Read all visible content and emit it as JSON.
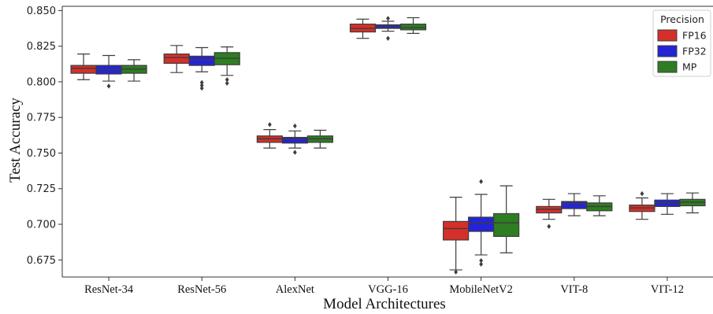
{
  "chart_data": {
    "type": "box",
    "xlabel": "Model Architectures",
    "ylabel": "Test Accuracy",
    "ylim": [
      0.663,
      0.853
    ],
    "yticks": [
      "0.675",
      "0.700",
      "0.725",
      "0.750",
      "0.775",
      "0.800",
      "0.825",
      "0.850"
    ],
    "grid": false,
    "legend": {
      "title": "Precision",
      "position": "top-right"
    },
    "categories": [
      "ResNet-34",
      "ResNet-56",
      "AlexNet",
      "VGG-16",
      "MobileNetV2",
      "VIT-8",
      "VIT-12"
    ],
    "series": [
      {
        "name": "FP16",
        "color": "#d62f2a",
        "boxes": [
          {
            "whislo": 0.8015,
            "q1": 0.806,
            "med": 0.8095,
            "q3": 0.8115,
            "whishi": 0.8195,
            "fliers": []
          },
          {
            "whislo": 0.8065,
            "q1": 0.813,
            "med": 0.817,
            "q3": 0.8195,
            "whishi": 0.8255,
            "fliers": []
          },
          {
            "whislo": 0.7535,
            "q1": 0.7575,
            "med": 0.76,
            "q3": 0.762,
            "whishi": 0.7665,
            "fliers": [
              0.77
            ]
          },
          {
            "whislo": 0.8305,
            "q1": 0.835,
            "med": 0.8375,
            "q3": 0.8405,
            "whishi": 0.844,
            "fliers": []
          },
          {
            "whislo": 0.668,
            "q1": 0.689,
            "med": 0.697,
            "q3": 0.702,
            "whishi": 0.719,
            "fliers": [
              0.6665
            ]
          },
          {
            "whislo": 0.7035,
            "q1": 0.708,
            "med": 0.7105,
            "q3": 0.7125,
            "whishi": 0.7175,
            "fliers": [
              0.6985
            ]
          },
          {
            "whislo": 0.7035,
            "q1": 0.709,
            "med": 0.7115,
            "q3": 0.7135,
            "whishi": 0.7185,
            "fliers": [
              0.7215
            ]
          }
        ]
      },
      {
        "name": "FP32",
        "color": "#2424d6",
        "boxes": [
          {
            "whislo": 0.8005,
            "q1": 0.8055,
            "med": 0.8085,
            "q3": 0.8115,
            "whishi": 0.8185,
            "fliers": [
              0.797
            ]
          },
          {
            "whislo": 0.807,
            "q1": 0.8115,
            "med": 0.8155,
            "q3": 0.818,
            "whishi": 0.824,
            "fliers": [
              0.7995,
              0.7975,
              0.7955
            ]
          },
          {
            "whislo": 0.7535,
            "q1": 0.757,
            "med": 0.7595,
            "q3": 0.761,
            "whishi": 0.7655,
            "fliers": [
              0.769,
              0.7505
            ]
          },
          {
            "whislo": 0.8355,
            "q1": 0.8375,
            "med": 0.839,
            "q3": 0.84,
            "whishi": 0.8425,
            "fliers": [
              0.8445,
              0.8305
            ]
          },
          {
            "whislo": 0.6785,
            "q1": 0.695,
            "med": 0.701,
            "q3": 0.705,
            "whishi": 0.721,
            "fliers": [
              0.73,
              0.6745,
              0.672
            ]
          },
          {
            "whislo": 0.706,
            "q1": 0.711,
            "med": 0.7145,
            "q3": 0.716,
            "whishi": 0.7215,
            "fliers": []
          },
          {
            "whislo": 0.707,
            "q1": 0.7125,
            "med": 0.715,
            "q3": 0.717,
            "whishi": 0.7215,
            "fliers": []
          }
        ]
      },
      {
        "name": "MP",
        "color": "#2e7d22",
        "boxes": [
          {
            "whislo": 0.8005,
            "q1": 0.806,
            "med": 0.809,
            "q3": 0.8115,
            "whishi": 0.8155,
            "fliers": []
          },
          {
            "whislo": 0.8045,
            "q1": 0.812,
            "med": 0.8165,
            "q3": 0.8205,
            "whishi": 0.8245,
            "fliers": [
              0.8015,
              0.799
            ]
          },
          {
            "whislo": 0.7535,
            "q1": 0.7575,
            "med": 0.76,
            "q3": 0.762,
            "whishi": 0.766,
            "fliers": []
          },
          {
            "whislo": 0.834,
            "q1": 0.8365,
            "med": 0.838,
            "q3": 0.8405,
            "whishi": 0.845,
            "fliers": []
          },
          {
            "whislo": 0.68,
            "q1": 0.6915,
            "med": 0.701,
            "q3": 0.7075,
            "whishi": 0.727,
            "fliers": []
          },
          {
            "whislo": 0.706,
            "q1": 0.7095,
            "med": 0.7125,
            "q3": 0.715,
            "whishi": 0.72,
            "fliers": []
          },
          {
            "whislo": 0.708,
            "q1": 0.713,
            "med": 0.7155,
            "q3": 0.7175,
            "whishi": 0.722,
            "fliers": []
          }
        ]
      }
    ]
  }
}
